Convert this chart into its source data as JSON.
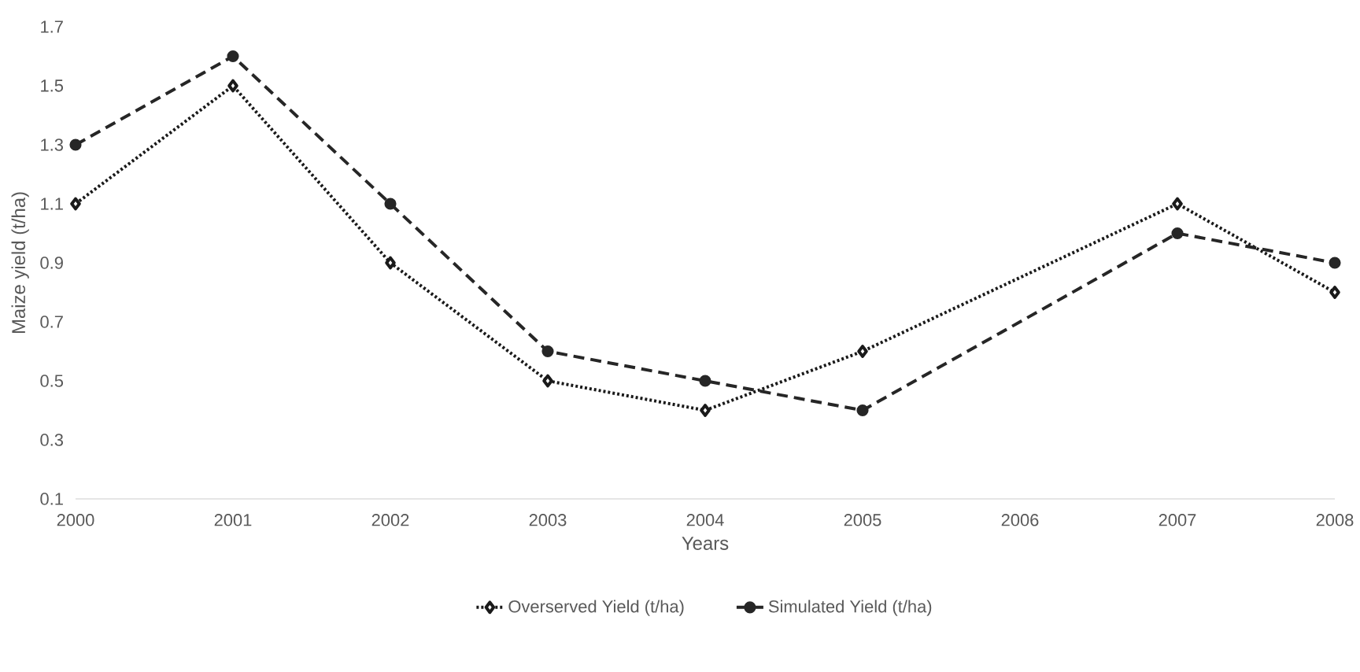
{
  "chart_data": {
    "type": "line",
    "xlabel": "Years",
    "ylabel": "Maize yield (t/ha)",
    "xlim": [
      2000,
      2008
    ],
    "xticks": [
      2000,
      2001,
      2002,
      2003,
      2004,
      2005,
      2006,
      2007,
      2008
    ],
    "ylim": [
      0.1,
      1.7
    ],
    "yticks": [
      0.1,
      0.3,
      0.5,
      0.7,
      0.9,
      1.1,
      1.3,
      1.5,
      1.7
    ],
    "grid": false,
    "legend": "bottom",
    "series": [
      {
        "name": "Overserved Yield (t/ha)",
        "color": "#1a1a1a",
        "marker": "diamond",
        "line_style": "dotted",
        "x": [
          2000,
          2001,
          2002,
          2003,
          2004,
          2005,
          2007,
          2008
        ],
        "values": [
          1.1,
          1.5,
          0.9,
          0.5,
          0.4,
          0.6,
          1.1,
          0.8
        ]
      },
      {
        "name": "Simulated Yield (t/ha)",
        "color": "#262626",
        "marker": "circle",
        "line_style": "dashed",
        "x": [
          2000,
          2001,
          2002,
          2003,
          2004,
          2005,
          2007,
          2008
        ],
        "values": [
          1.3,
          1.6,
          1.1,
          0.6,
          0.5,
          0.4,
          1.0,
          0.9
        ]
      }
    ]
  }
}
